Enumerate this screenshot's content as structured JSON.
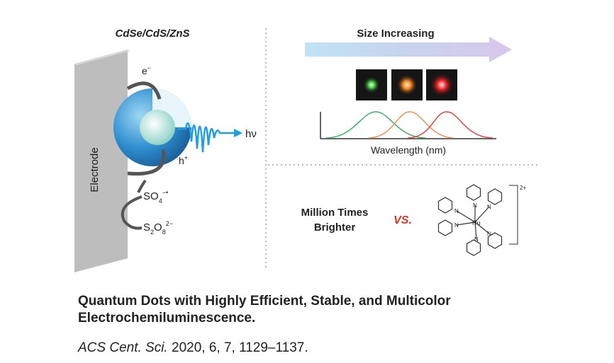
{
  "figure": {
    "left": {
      "material": "CdSe/CdS/ZnS",
      "electron": "e",
      "electron_charge": "−",
      "hole": "h",
      "hole_charge": "+",
      "emission": "hν",
      "electrode": "Electrode",
      "radical": {
        "base": "SO",
        "sub": "4",
        "sup": "−•"
      },
      "coreactant": {
        "parts": [
          "S",
          "2",
          "O",
          "8"
        ],
        "sup": "2−"
      }
    },
    "right_top": {
      "arrow_label": "Size Increasing",
      "x_label": "Wavelength (nm)"
    },
    "right_bottom": {
      "claim": [
        "Million Times",
        "Brighter"
      ],
      "versus": "VS.",
      "complex": {
        "metal": "Ru",
        "charge": "2+",
        "ligand_atoms": [
          "N",
          "N",
          "N",
          "N",
          "N",
          "N"
        ]
      }
    }
  },
  "caption": {
    "title": [
      "Quantum Dots with Highly Efficient, Stable, and Multicolor",
      "Electrochemiluminescence."
    ],
    "journal": "ACS Cent. Sci.",
    "details": "2020, 6, 7, 1129–1137."
  }
}
